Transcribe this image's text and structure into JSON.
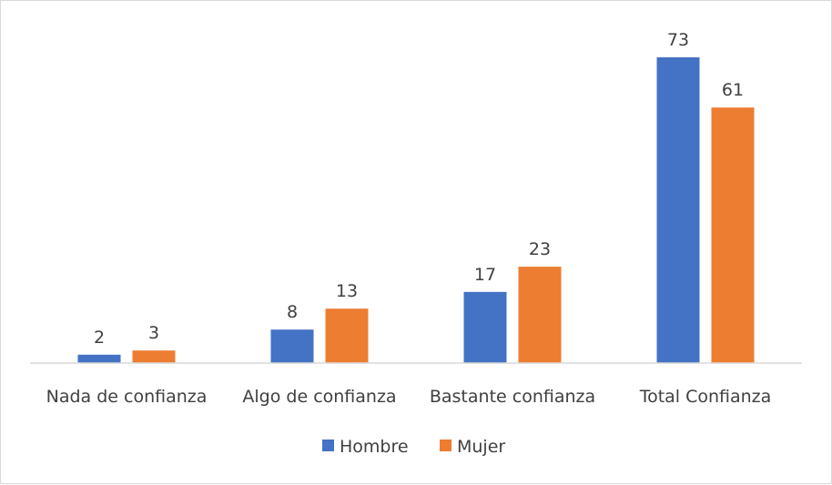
{
  "chart_data": {
    "type": "bar",
    "categories": [
      "Nada de confianza",
      "Algo de confianza",
      "Bastante confianza",
      "Total Confianza"
    ],
    "series": [
      {
        "name": "Hombre",
        "values": [
          2,
          8,
          17,
          73
        ],
        "color": "#4472c4"
      },
      {
        "name": "Mujer",
        "values": [
          3,
          13,
          23,
          61
        ],
        "color": "#ed7d31"
      }
    ],
    "title": "",
    "xlabel": "",
    "ylabel": "",
    "ylim": [
      0,
      80
    ],
    "grid": false,
    "data_labels": true,
    "legend_position": "bottom"
  }
}
